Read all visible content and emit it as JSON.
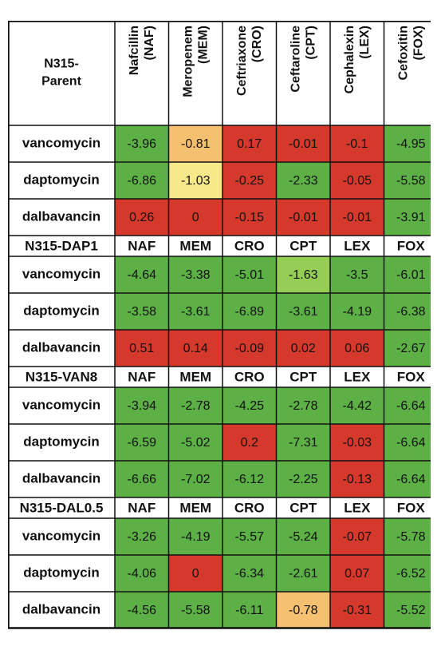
{
  "chart_data": {
    "type": "heatmap",
    "corner_label": [
      "N315-",
      "Parent"
    ],
    "columns": [
      {
        "name": "Nafcillin",
        "abbr": "(NAF)"
      },
      {
        "name": "Meropenem",
        "abbr": "(MEM)"
      },
      {
        "name": "Ceftriaxone",
        "abbr": "(CRO)"
      },
      {
        "name": "Ceftaroline",
        "abbr": "(CPT)"
      },
      {
        "name": "Cephalexin",
        "abbr": "(LEX)"
      },
      {
        "name": "Cefoxitin",
        "abbr": "(FOX)"
      }
    ],
    "colors": {
      "green": "#5cb045",
      "light_green": "#95cd55",
      "orange": "#f5c070",
      "yellow": "#f7e88a",
      "red": "#d4392b",
      "grid": "#111111",
      "group_blue": "#4a6fc0",
      "group_red": "#c0392b"
    },
    "groups": [
      {
        "strain": "N315-Parent",
        "rows": [
          {
            "label": "vancomycin",
            "values": [
              "-3.96",
              "-0.81",
              "0.17",
              "-0.01",
              "-0.1",
              "-4.95"
            ],
            "colors": [
              "green",
              "orange",
              "red",
              "red",
              "red",
              "green"
            ]
          },
          {
            "label": "daptomycin",
            "values": [
              "-6.86",
              "-1.03",
              "-0.25",
              "-2.33",
              "-0.05",
              "-5.58"
            ],
            "colors": [
              "green",
              "yellow",
              "red",
              "green",
              "red",
              "green"
            ]
          },
          {
            "label": "dalbavancin",
            "values": [
              "0.26",
              "0",
              "-0.15",
              "-0.01",
              "-0.01",
              "-3.91"
            ],
            "colors": [
              "red",
              "red",
              "red",
              "red",
              "red",
              "green"
            ]
          }
        ]
      },
      {
        "strain": "N315-DAP1",
        "strain_color": "group_blue",
        "abbrs": [
          "NAF",
          "MEM",
          "CRO",
          "CPT",
          "LEX",
          "FOX"
        ],
        "rows": [
          {
            "label": "vancomycin",
            "values": [
              "-4.64",
              "-3.38",
              "-5.01",
              "-1.63",
              "-3.5",
              "-6.01"
            ],
            "colors": [
              "green",
              "green",
              "green",
              "light_green",
              "green",
              "green"
            ]
          },
          {
            "label": "daptomycin",
            "values": [
              "-3.58",
              "-3.61",
              "-6.89",
              "-3.61",
              "-4.19",
              "-6.38"
            ],
            "colors": [
              "green",
              "green",
              "green",
              "green",
              "green",
              "green"
            ]
          },
          {
            "label": "dalbavancin",
            "values": [
              "0.51",
              "0.14",
              "-0.09",
              "0.02",
              "0.06",
              "-2.67"
            ],
            "colors": [
              "red",
              "red",
              "red",
              "red",
              "red",
              "green"
            ]
          }
        ]
      },
      {
        "strain": "N315-VAN8",
        "strain_color": "group_blue",
        "abbrs": [
          "NAF",
          "MEM",
          "CRO",
          "CPT",
          "LEX",
          "FOX"
        ],
        "rows": [
          {
            "label": "vancomycin",
            "values": [
              "-3.94",
              "-2.78",
              "-4.25",
              "-2.78",
              "-4.42",
              "-6.64"
            ],
            "colors": [
              "green",
              "green",
              "green",
              "green",
              "green",
              "green"
            ]
          },
          {
            "label": "daptomycin",
            "values": [
              "-6.59",
              "-5.02",
              "0.2",
              "-7.31",
              "-0.03",
              "-6.64"
            ],
            "colors": [
              "green",
              "green",
              "red",
              "green",
              "red",
              "green"
            ]
          },
          {
            "label": "dalbavancin",
            "values": [
              "-6.66",
              "-7.02",
              "-6.12",
              "-2.25",
              "-0.13",
              "-6.64"
            ],
            "colors": [
              "green",
              "green",
              "green",
              "green",
              "red",
              "green"
            ]
          }
        ]
      },
      {
        "strain": "N315-DAL0.5",
        "strain_color": "group_red",
        "abbrs": [
          "NAF",
          "MEM",
          "CRO",
          "CPT",
          "LEX",
          "FOX"
        ],
        "rows": [
          {
            "label": "vancomycin",
            "values": [
              "-3.26",
              "-4.19",
              "-5.57",
              "-5.24",
              "-0.07",
              "-5.78"
            ],
            "colors": [
              "green",
              "green",
              "green",
              "green",
              "red",
              "green"
            ]
          },
          {
            "label": "daptomycin",
            "values": [
              "-4.06",
              "0",
              "-6.34",
              "-2.61",
              "0.07",
              "-6.52"
            ],
            "colors": [
              "green",
              "red",
              "green",
              "green",
              "red",
              "green"
            ]
          },
          {
            "label": "dalbavancin",
            "values": [
              "-4.56",
              "-5.58",
              "-6.11",
              "-0.78",
              "-0.31",
              "-5.52"
            ],
            "colors": [
              "green",
              "green",
              "green",
              "orange",
              "red",
              "green"
            ]
          }
        ]
      }
    ]
  }
}
